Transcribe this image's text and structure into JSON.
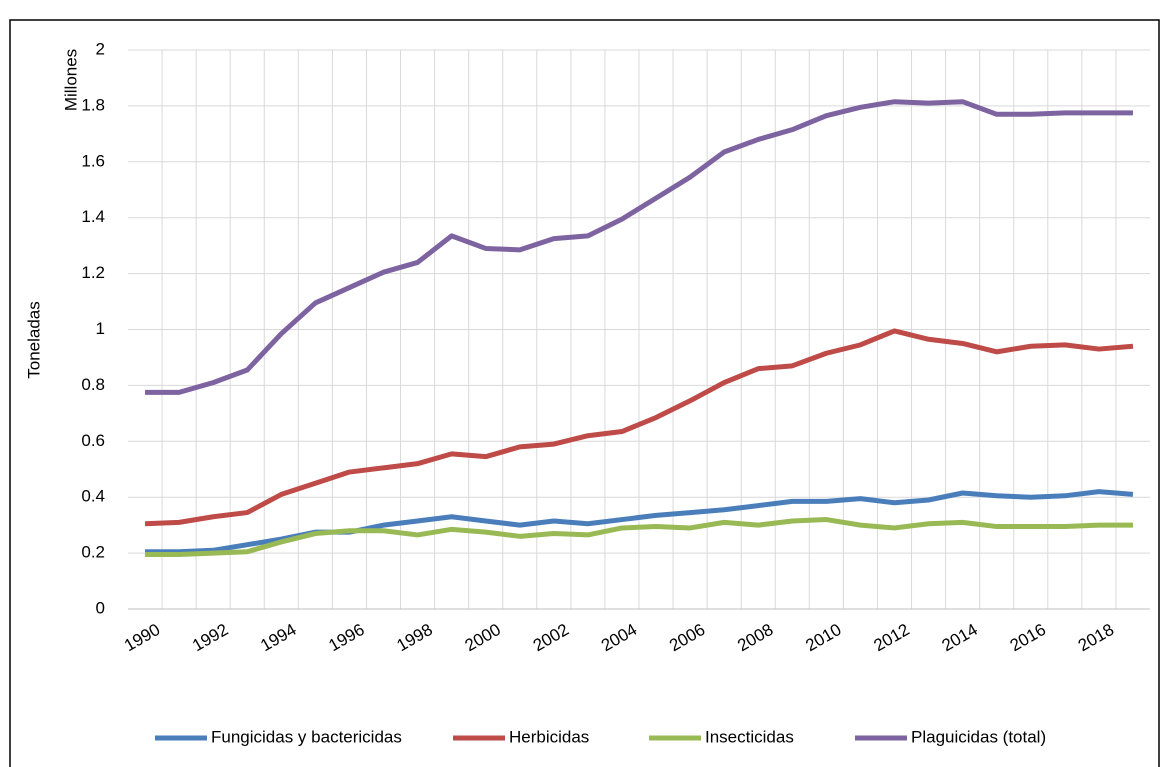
{
  "chart_data": {
    "type": "line",
    "y_label": "Toneladas",
    "y_unit_label": "Millones",
    "categories": [
      "1990",
      null,
      "1992",
      null,
      "1994",
      null,
      "1996",
      null,
      "1998",
      null,
      "2000",
      null,
      "2002",
      null,
      "2004",
      null,
      "2006",
      null,
      "2008",
      null,
      "2010",
      null,
      "2012",
      null,
      "2014",
      null,
      "2016",
      null,
      "2018",
      null
    ],
    "series": [
      {
        "name": "Fungicidas y bactericidas",
        "color": "#4a7ebb",
        "values": [
          0.205,
          0.205,
          0.21,
          0.23,
          0.25,
          0.275,
          0.275,
          0.3,
          0.315,
          0.33,
          0.315,
          0.3,
          0.315,
          0.305,
          0.32,
          0.335,
          0.345,
          0.355,
          0.37,
          0.385,
          0.385,
          0.395,
          0.38,
          0.39,
          0.415,
          0.405,
          0.4,
          0.405,
          0.42,
          0.41
        ]
      },
      {
        "name": "Herbicidas",
        "color": "#be4b48",
        "values": [
          0.305,
          0.31,
          0.33,
          0.345,
          0.41,
          0.45,
          0.49,
          0.505,
          0.52,
          0.555,
          0.545,
          0.58,
          0.59,
          0.62,
          0.635,
          0.685,
          0.745,
          0.81,
          0.86,
          0.87,
          0.915,
          0.945,
          0.995,
          0.965,
          0.95,
          0.92,
          0.94,
          0.945,
          0.93,
          0.94
        ]
      },
      {
        "name": "Insecticidas",
        "color": "#98b954",
        "values": [
          0.195,
          0.195,
          0.2,
          0.205,
          0.24,
          0.27,
          0.28,
          0.28,
          0.265,
          0.285,
          0.275,
          0.26,
          0.27,
          0.265,
          0.29,
          0.295,
          0.29,
          0.31,
          0.3,
          0.315,
          0.32,
          0.3,
          0.29,
          0.305,
          0.31,
          0.295,
          0.295,
          0.295,
          0.3,
          0.3
        ]
      },
      {
        "name": "Plaguicidas (total)",
        "color": "#7e63a1",
        "values": [
          0.775,
          0.775,
          0.81,
          0.855,
          0.985,
          1.095,
          1.15,
          1.205,
          1.24,
          1.335,
          1.29,
          1.285,
          1.325,
          1.335,
          1.395,
          1.47,
          1.545,
          1.635,
          1.68,
          1.715,
          1.765,
          1.795,
          1.815,
          1.81,
          1.815,
          1.77,
          1.77,
          1.775,
          1.775,
          1.775
        ]
      }
    ],
    "ylim": [
      0,
      2
    ],
    "yticks": [
      0,
      0.2,
      0.4,
      0.6,
      0.8,
      1,
      1.2,
      1.4,
      1.6,
      1.8,
      2
    ],
    "grid": true,
    "legend": "bottom"
  }
}
